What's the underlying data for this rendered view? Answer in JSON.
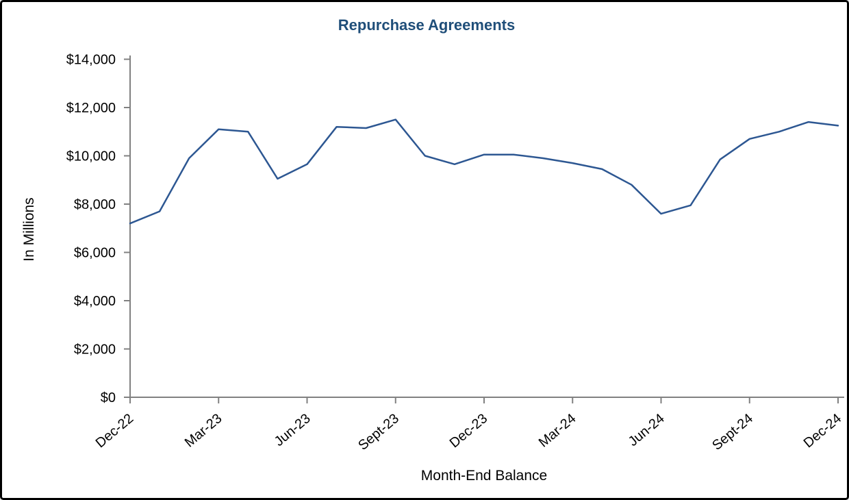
{
  "title": "Repurchase Agreements",
  "colors": {
    "title": "#1f4e79",
    "line": "#2d5792",
    "axis": "#808080",
    "text": "#000000",
    "background": "#ffffff",
    "frame": "#000000"
  },
  "chart_data": {
    "type": "line",
    "title": "Repurchase Agreements",
    "xlabel": "Month-End Balance",
    "ylabel": "In Millions",
    "series_name": "Repurchase Agreements",
    "x": [
      "Dec-22",
      "Jan-23",
      "Feb-23",
      "Mar-23",
      "Apr-23",
      "May-23",
      "Jun-23",
      "Jul-23",
      "Aug-23",
      "Sept-23",
      "Oct-23",
      "Nov-23",
      "Dec-23",
      "Jan-24",
      "Feb-24",
      "Mar-24",
      "Apr-24",
      "May-24",
      "Jun-24",
      "Jul-24",
      "Aug-24",
      "Sept-24",
      "Oct-24",
      "Nov-24",
      "Dec-24"
    ],
    "values": [
      7200,
      7700,
      9900,
      11100,
      11000,
      9050,
      9650,
      11200,
      11150,
      11500,
      10000,
      9650,
      10050,
      10050,
      9900,
      9700,
      9450,
      8800,
      7600,
      7950,
      9850,
      10700,
      11000,
      11400,
      11250
    ],
    "x_tick_labels": [
      "Dec-22",
      "Mar-23",
      "Jun-23",
      "Sept-23",
      "Dec-23",
      "Mar-24",
      "Jun-24",
      "Sept-24",
      "Dec-24"
    ],
    "y_ticks": [
      0,
      2000,
      4000,
      6000,
      8000,
      10000,
      12000,
      14000
    ],
    "y_tick_labels": [
      "$0",
      "$2,000",
      "$4,000",
      "$6,000",
      "$8,000",
      "$10,000",
      "$12,000",
      "$14,000"
    ],
    "ylim": [
      0,
      14000
    ],
    "units": "USD millions",
    "grid": false,
    "legend": false,
    "markers": false
  }
}
